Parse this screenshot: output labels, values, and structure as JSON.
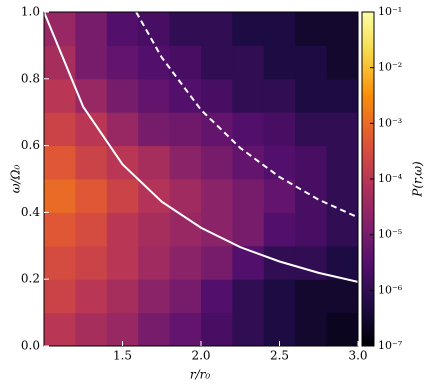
{
  "chart_data": {
    "type": "heatmap",
    "xlabel": "r/r₀",
    "ylabel": "ω/Ω₀",
    "colorbar_label": "P(r,ω)",
    "xlim": [
      1.0,
      3.0
    ],
    "ylim": [
      0.0,
      1.0
    ],
    "xticks": [
      1.5,
      {
        "value": 2.0,
        "label": "2.0"
      },
      2.5,
      {
        "value": 3.0,
        "label": "3.0"
      }
    ],
    "yticks": [
      {
        "value": 0.0,
        "label": "0.0"
      },
      0.2,
      0.4,
      0.6,
      0.8,
      {
        "value": 1.0,
        "label": "1.0"
      }
    ],
    "clim": [
      1e-07,
      0.1
    ],
    "clog": true,
    "colormap": [
      "#000004",
      "#1f0c48",
      "#550f6d",
      "#88226a",
      "#ba3655",
      "#e35933",
      "#f98e09",
      "#f6d746",
      "#fcffa4"
    ],
    "cticks": [
      {
        "value": 1e-07,
        "label": "10⁻⁷"
      },
      {
        "value": 1e-06,
        "label": "10⁻⁶"
      },
      {
        "value": 1e-05,
        "label": "10⁻⁵"
      },
      {
        "value": 0.0001,
        "label": "10⁻⁴"
      },
      {
        "value": 0.001,
        "label": "10⁻³"
      },
      {
        "value": 0.01,
        "label": "10⁻²"
      },
      {
        "value": 0.1,
        "label": "10⁻¹"
      }
    ],
    "xbins": [
      1.0,
      1.2,
      1.4,
      1.6,
      1.8,
      2.0,
      2.2,
      2.4,
      2.6,
      2.8,
      3.0
    ],
    "ybins": [
      0.0,
      0.1,
      0.2,
      0.3,
      0.4,
      0.5,
      0.6,
      0.7,
      0.8,
      0.9,
      1.0
    ],
    "z": [
      [
        0.0001,
        5e-05,
        3e-05,
        1e-05,
        5e-06,
        2e-06,
        1e-06,
        5e-07,
        3e-07,
        2e-07
      ],
      [
        0.0002,
        0.0001,
        5e-05,
        2e-05,
        1e-05,
        3e-06,
        1e-06,
        5e-07,
        3e-07,
        3e-07
      ],
      [
        0.0003,
        0.0002,
        0.0001,
        4e-05,
        2e-05,
        1e-05,
        3e-06,
        1e-06,
        1e-06,
        5e-07
      ],
      [
        0.0005,
        0.0003,
        0.0001,
        5e-05,
        3e-05,
        2e-05,
        1e-05,
        3e-06,
        2e-06,
        1e-06
      ],
      [
        0.001,
        0.0005,
        0.0002,
        8e-05,
        4e-05,
        2e-05,
        1e-05,
        5e-06,
        2e-06,
        1e-06
      ],
      [
        0.0005,
        0.0002,
        0.0001,
        5e-05,
        2e-05,
        1e-05,
        5e-06,
        3e-06,
        2e-06,
        1e-06
      ],
      [
        0.0002,
        0.0001,
        3e-05,
        1e-05,
        8e-06,
        5e-06,
        3e-06,
        2e-06,
        1e-06,
        1e-06
      ],
      [
        0.0001,
        3e-05,
        1e-05,
        5e-06,
        3e-06,
        2e-06,
        1e-06,
        1e-06,
        5e-07,
        5e-07
      ],
      [
        5e-05,
        1e-05,
        5e-06,
        3e-06,
        2e-06,
        1e-06,
        1e-06,
        5e-07,
        5e-07,
        3e-07
      ],
      [
        3e-05,
        1e-05,
        3e-06,
        2e-06,
        1e-06,
        1e-06,
        5e-07,
        5e-07,
        3e-07,
        3e-07
      ]
    ],
    "lines": [
      {
        "color": "#ffffff",
        "dashed": false,
        "x": [
          1.0,
          1.25,
          1.5,
          1.75,
          2.0,
          2.25,
          2.5,
          2.75,
          3.0
        ],
        "values": [
          1.0,
          0.716,
          0.544,
          0.432,
          0.354,
          0.296,
          0.253,
          0.219,
          0.192
        ]
      },
      {
        "color": "#ffffff",
        "dashed": true,
        "x": [
          1.587,
          1.75,
          2.0,
          2.25,
          2.5,
          2.75,
          3.0
        ],
        "values": [
          1.0,
          0.864,
          0.707,
          0.593,
          0.506,
          0.438,
          0.385
        ]
      }
    ]
  }
}
